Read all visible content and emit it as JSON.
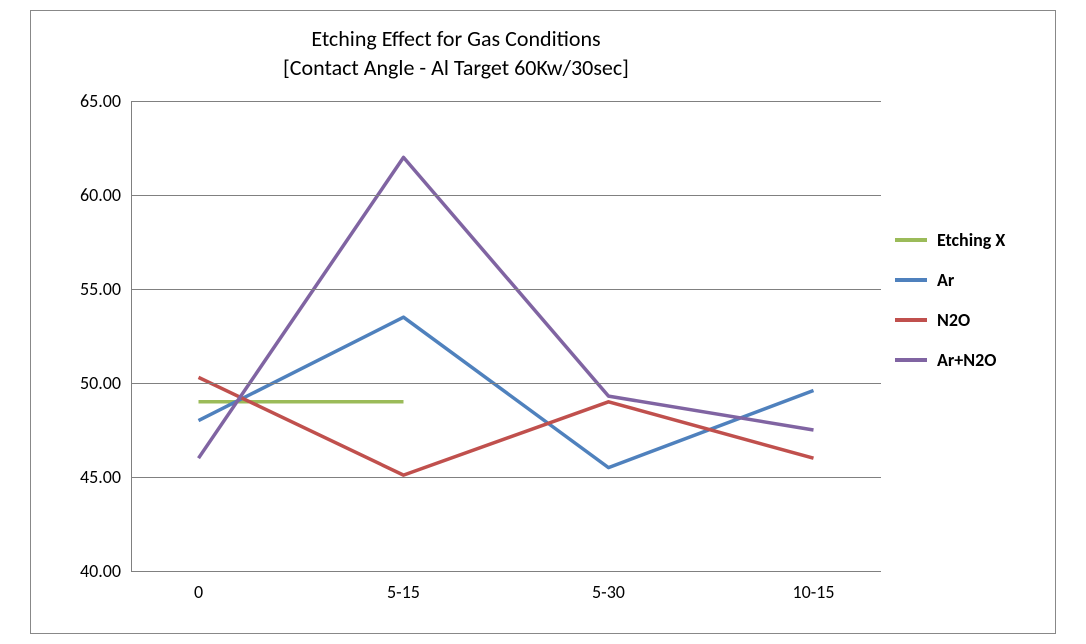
{
  "chart": {
    "type": "line",
    "title_line1": "Etching Effect for Gas  Conditions",
    "title_line2": "[Contact Angle - Al Target 60Kw/30sec]",
    "title_fontsize": 22,
    "background_color": "#ffffff",
    "border_color": "#888888",
    "grid_color": "#808080",
    "axis_color": "#808080",
    "label_fontsize": 18,
    "legend_fontsize": 18,
    "ylim": [
      40.0,
      65.0
    ],
    "ytick_step": 5.0,
    "yticks": [
      "40.00",
      "45.00",
      "50.00",
      "55.00",
      "60.00",
      "65.00"
    ],
    "categories": [
      "0",
      "5-15",
      "5-30",
      "10-15"
    ],
    "line_width": 3.5,
    "series": [
      {
        "name": "Etching X",
        "color": "#9bbb59",
        "values": [
          49.0,
          49.0,
          null,
          null
        ]
      },
      {
        "name": "Ar",
        "color": "#4f81bd",
        "values": [
          48.0,
          53.5,
          45.5,
          49.6
        ]
      },
      {
        "name": "N2O",
        "color": "#c0504d",
        "values": [
          50.3,
          45.1,
          49.0,
          46.0
        ]
      },
      {
        "name": "Ar+N2O",
        "color": "#8064a2",
        "values": [
          46.0,
          62.0,
          49.3,
          47.5
        ]
      }
    ]
  }
}
